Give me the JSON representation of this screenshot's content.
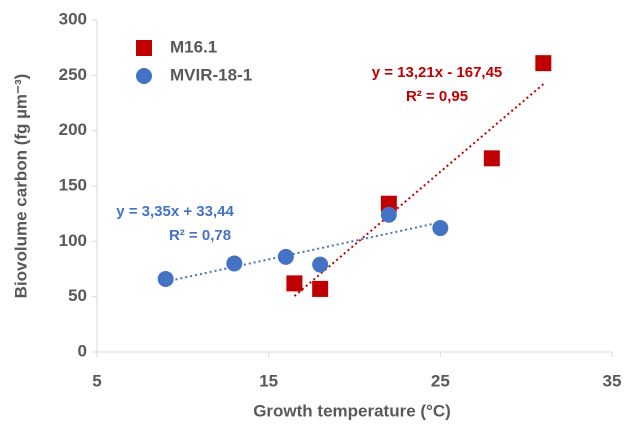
{
  "chart_data": {
    "type": "scatter",
    "x_label": "Growth temperature (°C)",
    "y_label": "Biovolume carbon (fg µm⁻³)",
    "xlim": [
      5,
      35
    ],
    "xticks": [
      5,
      15,
      25,
      35
    ],
    "ylim": [
      0,
      300
    ],
    "yticks": [
      0,
      50,
      100,
      150,
      200,
      250,
      300
    ],
    "legend": "top-left",
    "series": [
      {
        "name": "M16.1",
        "color": "#c00000",
        "marker": "square",
        "x": [
          16.5,
          18,
          22,
          28,
          31
        ],
        "values": [
          62,
          57,
          134,
          175,
          261
        ],
        "trendline": {
          "equation": "y = 13,21x - 167,45",
          "r2": "R² = 0,95",
          "slope": 13.21,
          "intercept": -167.45
        }
      },
      {
        "name": "MVIR-18-1",
        "color": "#4472c4",
        "marker": "circle",
        "x": [
          9,
          13,
          16,
          18,
          22,
          25
        ],
        "values": [
          66,
          80,
          86,
          79,
          124,
          112
        ],
        "trendline": {
          "equation": "y = 3,35x + 33,44",
          "r2": "R² = 0,78",
          "slope": 3.35,
          "intercept": 33.44
        }
      }
    ]
  }
}
